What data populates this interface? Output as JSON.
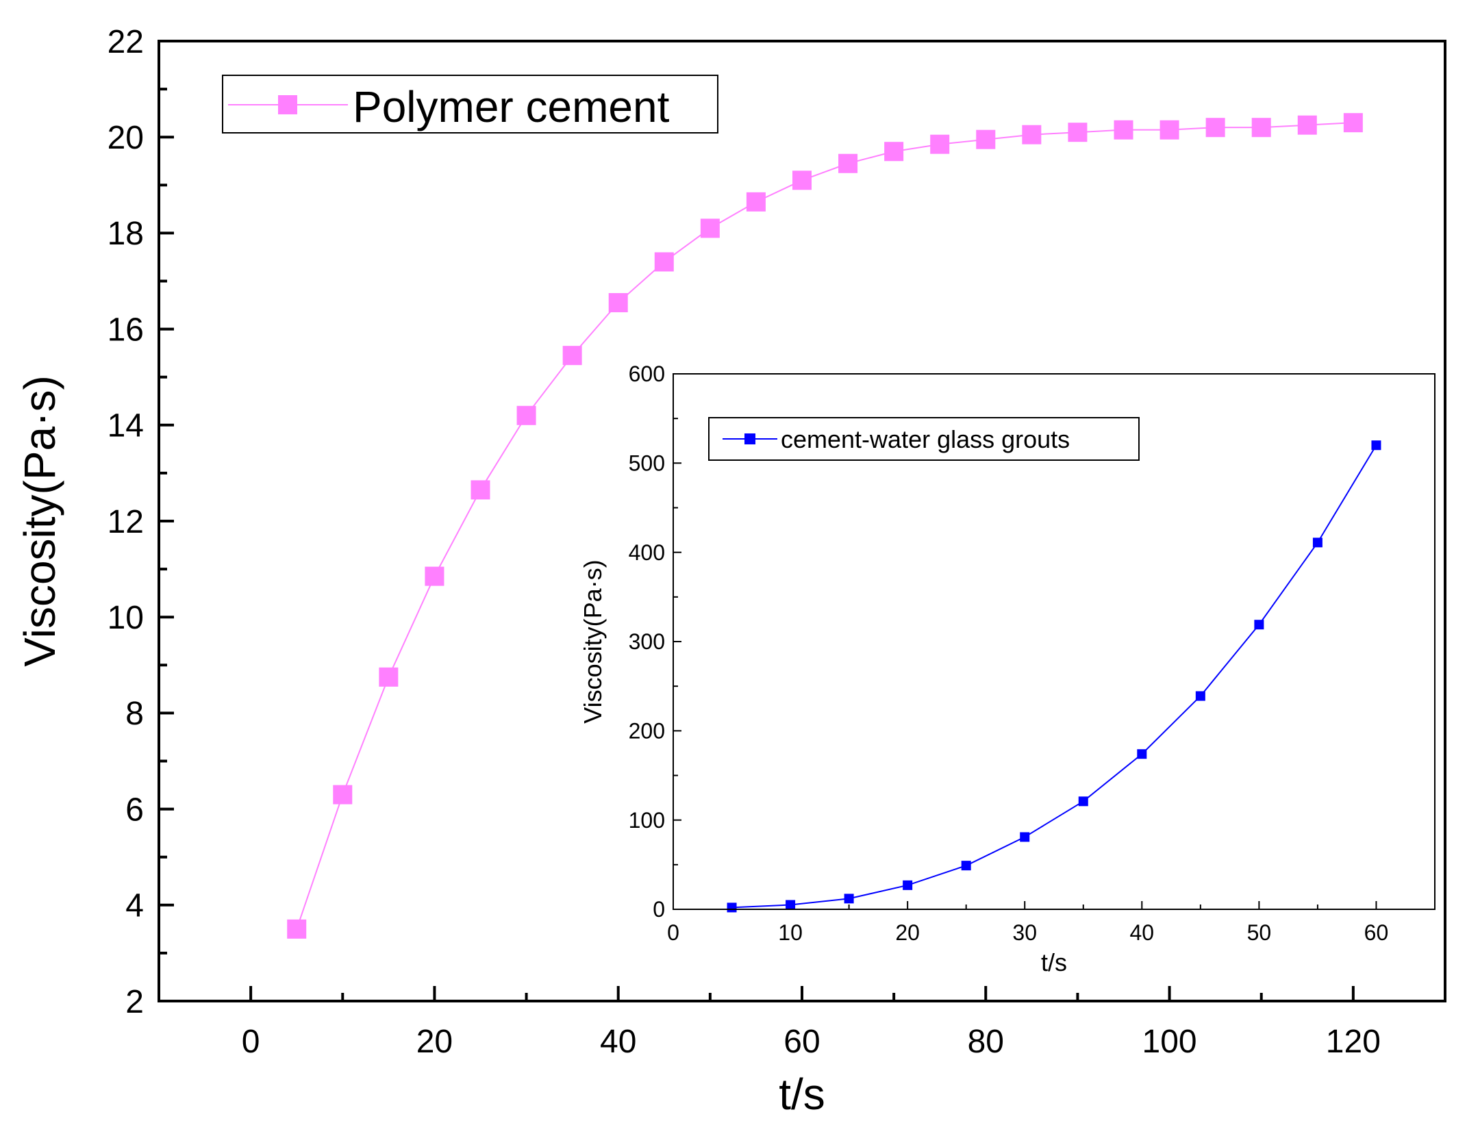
{
  "chart_data": [
    {
      "type": "line",
      "xlabel": "t/s",
      "ylabel": "Viscosity(Pa·s)",
      "xlim": [
        -10,
        130
      ],
      "ylim": [
        2,
        22
      ],
      "x_ticks": [
        0,
        20,
        40,
        60,
        80,
        100,
        120
      ],
      "y_ticks": [
        2,
        4,
        6,
        8,
        10,
        12,
        14,
        16,
        18,
        20,
        22
      ],
      "legend": "top-left",
      "grid": false,
      "series": [
        {
          "name": "Polymer cement",
          "color": "#ff80ff",
          "marker": "square",
          "x": [
            5,
            10,
            15,
            20,
            25,
            30,
            35,
            40,
            45,
            50,
            55,
            60,
            65,
            70,
            75,
            80,
            85,
            90,
            95,
            100,
            105,
            110,
            115,
            120
          ],
          "y": [
            3.5,
            6.3,
            8.75,
            10.85,
            12.65,
            14.2,
            15.45,
            16.55,
            17.4,
            18.1,
            18.65,
            19.1,
            19.45,
            19.7,
            19.85,
            19.95,
            20.05,
            20.1,
            20.15,
            20.15,
            20.2,
            20.2,
            20.25,
            20.3
          ]
        }
      ]
    },
    {
      "type": "line",
      "xlabel": "t/s",
      "ylabel": "Viscosity(Pa·s)",
      "xlim": [
        0,
        65
      ],
      "ylim": [
        0,
        600
      ],
      "x_ticks": [
        0,
        10,
        20,
        30,
        40,
        50,
        60
      ],
      "y_ticks": [
        0,
        100,
        200,
        300,
        400,
        500,
        600
      ],
      "legend": "top-left",
      "grid": false,
      "series": [
        {
          "name": "cement-water glass grouts",
          "color": "#0000ff",
          "marker": "square",
          "x": [
            5,
            10,
            15,
            20,
            25,
            30,
            35,
            40,
            45,
            50,
            55,
            60
          ],
          "y": [
            2,
            5,
            12,
            27,
            49,
            81,
            121,
            174,
            239,
            319,
            411,
            520
          ]
        }
      ]
    }
  ]
}
